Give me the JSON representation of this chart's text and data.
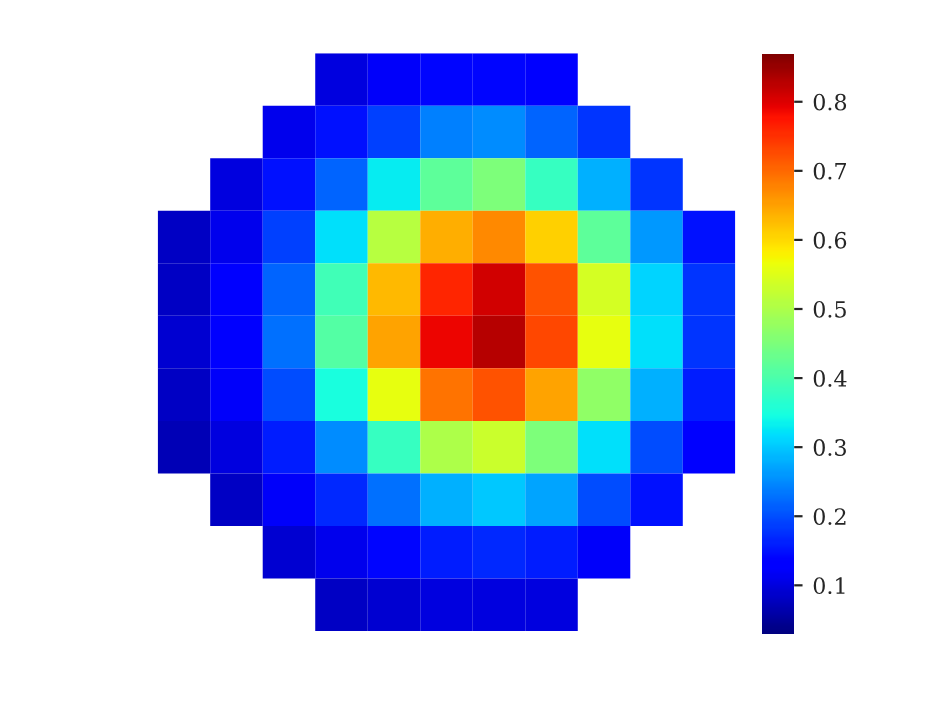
{
  "chart_data": {
    "type": "heatmap",
    "categories": [
      null,
      null,
      null,
      null,
      null,
      null,
      null,
      null,
      null,
      null,
      null
    ],
    "y_categories": [
      null,
      null,
      null,
      null,
      null,
      null,
      null,
      null,
      null,
      null,
      null
    ],
    "cells": [
      [
        null,
        null,
        null,
        0.1,
        0.12,
        0.14,
        0.14,
        0.13,
        null,
        null,
        null
      ],
      [
        null,
        null,
        0.11,
        0.15,
        0.19,
        0.24,
        0.25,
        0.22,
        0.18,
        null,
        null
      ],
      [
        null,
        0.1,
        0.15,
        0.22,
        0.33,
        0.42,
        0.45,
        0.38,
        0.28,
        0.18,
        null
      ],
      [
        0.08,
        0.11,
        0.19,
        0.32,
        0.51,
        0.64,
        0.67,
        0.61,
        0.42,
        0.26,
        0.15
      ],
      [
        0.08,
        0.13,
        0.22,
        0.39,
        0.63,
        0.76,
        0.81,
        0.72,
        0.54,
        0.31,
        0.18
      ],
      [
        0.09,
        0.13,
        0.23,
        0.41,
        0.65,
        0.79,
        0.83,
        0.73,
        0.56,
        0.32,
        0.18
      ],
      [
        0.08,
        0.12,
        0.2,
        0.35,
        0.56,
        0.69,
        0.72,
        0.65,
        0.47,
        0.28,
        0.16
      ],
      [
        0.07,
        0.1,
        0.16,
        0.25,
        0.38,
        0.5,
        0.53,
        0.45,
        0.32,
        0.2,
        0.13
      ],
      [
        null,
        0.08,
        0.12,
        0.17,
        0.23,
        0.28,
        0.3,
        0.27,
        0.2,
        0.15,
        null
      ],
      [
        null,
        null,
        0.09,
        0.11,
        0.14,
        0.16,
        0.17,
        0.16,
        0.12,
        null,
        null
      ],
      [
        null,
        null,
        null,
        0.08,
        0.09,
        0.1,
        0.1,
        0.1,
        null,
        null,
        null
      ]
    ],
    "clim": [
      0.03,
      0.87
    ],
    "cticks": [
      0.1,
      0.2,
      0.3,
      0.4,
      0.5,
      0.6,
      0.7,
      0.8
    ],
    "tick_labels": false
  }
}
